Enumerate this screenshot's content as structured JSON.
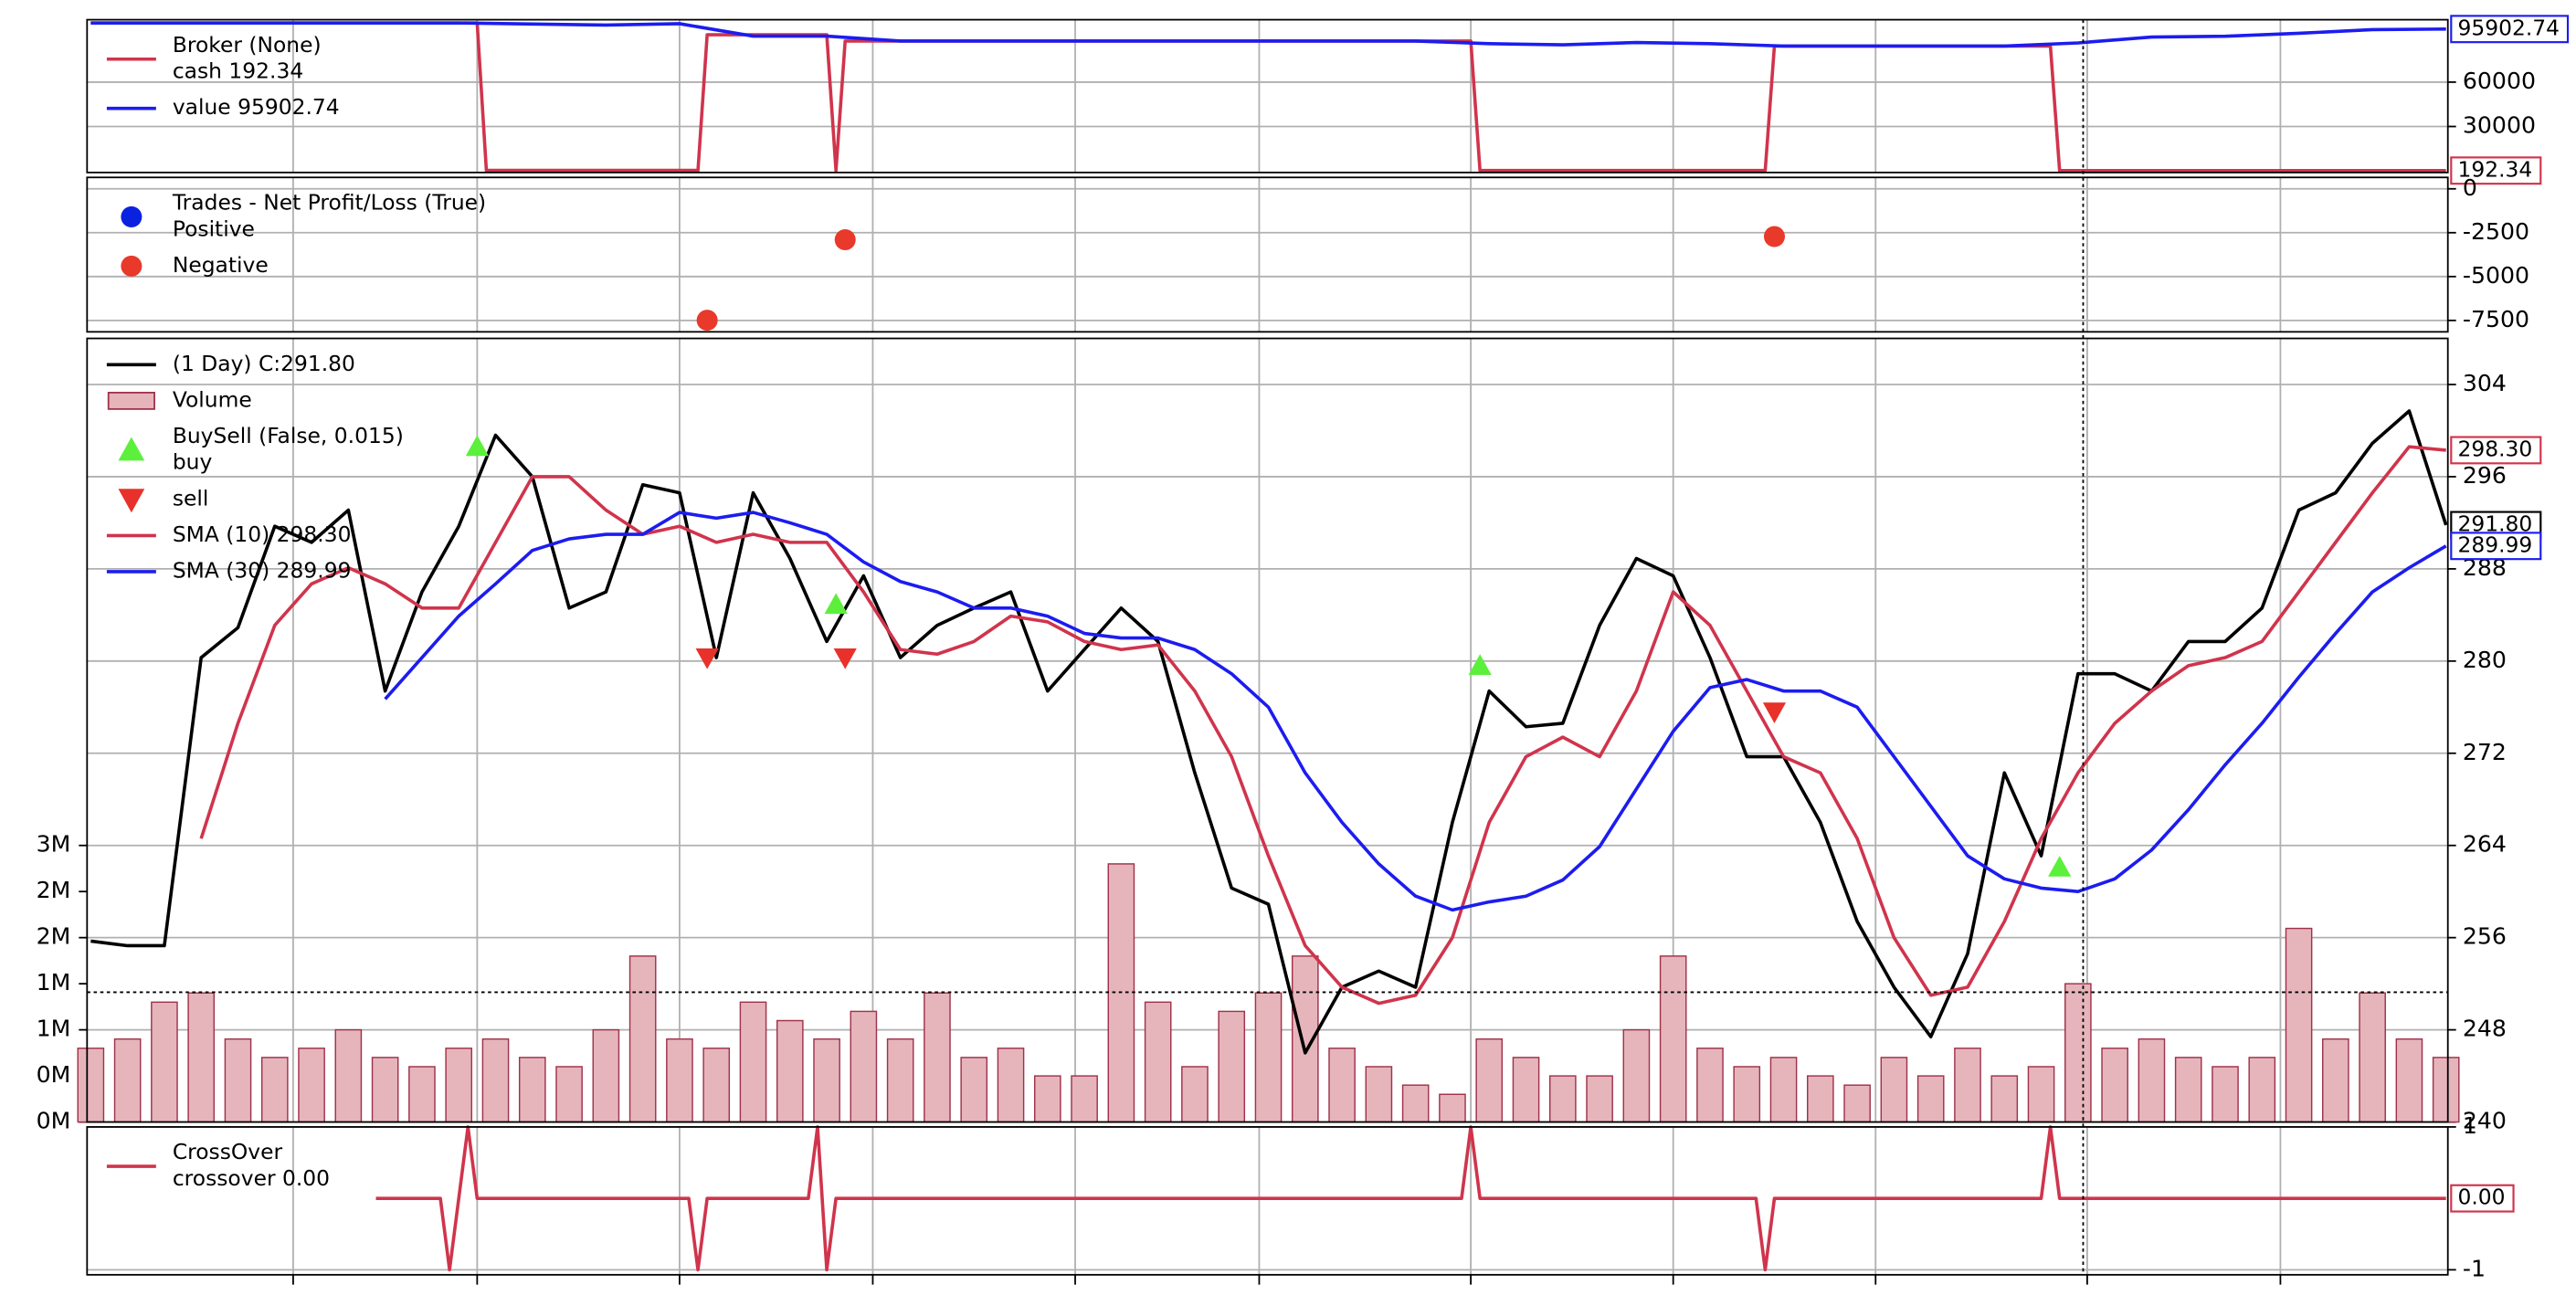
{
  "chart_data": [
    {
      "type": "line",
      "title": "Broker (None)",
      "legend": "upper left",
      "grid": true,
      "xlim": [
        -0.4,
        256.2
      ],
      "xticks": [
        22,
        42,
        64,
        85,
        107,
        127,
        150,
        172,
        194,
        217,
        238
      ],
      "ylim": [
        -1100,
        102200
      ],
      "yticks": [
        30000,
        60000
      ],
      "series": [
        {
          "name": "cash 192.34",
          "color": "#d0344c",
          "tag": "192.34",
          "x": [
            0,
            42,
            43,
            66,
            67,
            80,
            81,
            82,
            150,
            151,
            182,
            183,
            213,
            214,
            256
          ],
          "values": [
            100000,
            100000,
            300,
            300,
            92000,
            92000,
            300,
            87800,
            87800,
            250,
            250,
            84400,
            84400,
            192.34,
            192.34
          ]
        },
        {
          "name": "value 95902.74",
          "color": "#1c1cf0",
          "tag": "95902.74",
          "x": [
            0,
            8,
            16,
            24,
            32,
            40,
            48,
            56,
            64,
            72,
            80,
            88,
            96,
            104,
            112,
            120,
            128,
            136,
            144,
            152,
            160,
            168,
            176,
            184,
            192,
            200,
            208,
            216,
            224,
            232,
            240,
            248,
            256
          ],
          "values": [
            100000,
            100000,
            100000,
            100000,
            100000,
            100000,
            99300,
            98600,
            99500,
            91100,
            91100,
            87800,
            87800,
            87800,
            87800,
            87800,
            87800,
            87800,
            87800,
            86000,
            85200,
            86800,
            86000,
            84400,
            84400,
            84400,
            84400,
            86500,
            90500,
            91000,
            93000,
            95500,
            95902.74
          ]
        }
      ]
    },
    {
      "type": "scatter",
      "title": "Trades - Net Profit/Loss (True)",
      "legend": "upper left",
      "grid": true,
      "xlim": [
        -0.4,
        256.2
      ],
      "xticks": [
        22,
        42,
        64,
        85,
        107,
        127,
        150,
        172,
        194,
        217,
        238
      ],
      "ylim": [
        -8150,
        650
      ],
      "yticks": [
        -7500,
        -5000,
        -2500,
        0
      ],
      "series": [
        {
          "name": "Positive",
          "color": "#0a22e0",
          "x": [],
          "values": []
        },
        {
          "name": "Negative",
          "color": "#e8392b",
          "x": [
            67,
            82,
            183
          ],
          "values": [
            -7490,
            -2900,
            -2720
          ]
        }
      ]
    },
    {
      "type": "line",
      "legend": "upper left",
      "grid": true,
      "xlim": [
        -0.4,
        256.2
      ],
      "xticks": [
        22,
        42,
        64,
        85,
        107,
        127,
        150,
        172,
        194,
        217,
        238
      ],
      "ylim": [
        240,
        308
      ],
      "yticks": [
        240,
        248,
        256,
        264,
        272,
        280,
        288,
        296,
        304
      ],
      "y2lim": [
        0,
        8500000
      ],
      "y2ticks": [
        {
          "value": 0,
          "label": "0M"
        },
        {
          "value": 500000,
          "label": "0M"
        },
        {
          "value": 1000000,
          "label": "1M"
        },
        {
          "value": 1500000,
          "label": "1M"
        },
        {
          "value": 2000000,
          "label": "2M"
        },
        {
          "value": 2500000,
          "label": "2M"
        },
        {
          "value": 3000000,
          "label": "3M"
        }
      ],
      "x": [
        0,
        4,
        8,
        12,
        16,
        20,
        24,
        28,
        32,
        36,
        40,
        44,
        48,
        52,
        56,
        60,
        64,
        68,
        72,
        76,
        80,
        84,
        88,
        92,
        96,
        100,
        104,
        108,
        112,
        116,
        120,
        124,
        128,
        132,
        136,
        140,
        144,
        148,
        152,
        156,
        160,
        164,
        168,
        172,
        176,
        180,
        184,
        188,
        192,
        196,
        200,
        204,
        208,
        212,
        216,
        220,
        224,
        228,
        232,
        236,
        240,
        244,
        248,
        252,
        256
      ],
      "series": [
        {
          "name": "(1 Day) C:291.80",
          "color": "#000000",
          "tag": "291.80",
          "values": [
            255.7,
            255.3,
            255.3,
            280.3,
            282.9,
            291.7,
            290.3,
            293.1,
            277.4,
            286,
            291.7,
            299.6,
            296,
            284.6,
            286,
            295.3,
            294.6,
            280.3,
            294.6,
            288.9,
            281.7,
            287.4,
            280.3,
            283.1,
            284.6,
            286,
            277.4,
            281,
            284.6,
            281.7,
            270.3,
            260.3,
            258.9,
            246,
            251.7,
            253.1,
            251.7,
            266,
            277.4,
            274.3,
            274.6,
            283.1,
            288.9,
            287.4,
            280.3,
            271.7,
            271.7,
            266,
            257.4,
            251.7,
            247.4,
            254.6,
            270.3,
            263.1,
            278.9,
            278.9,
            277.4,
            281.7,
            281.7,
            284.6,
            293.1,
            294.6,
            298.9,
            301.7,
            291.8
          ]
        },
        {
          "name": "Volume",
          "type": "bar",
          "axis": "y2",
          "color": "#e6b5bb",
          "edgecolor": "#a0324a",
          "values": [
            800000,
            900000,
            1300000,
            1400000,
            900000,
            700000,
            800000,
            1000000,
            700000,
            600000,
            800000,
            900000,
            700000,
            600000,
            1000000,
            1800000,
            900000,
            800000,
            1300000,
            1100000,
            900000,
            1200000,
            900000,
            1400000,
            700000,
            800000,
            500000,
            500000,
            2800000,
            1300000,
            600000,
            1200000,
            1400000,
            1800000,
            800000,
            600000,
            400000,
            300000,
            900000,
            700000,
            500000,
            500000,
            1000000,
            1800000,
            800000,
            600000,
            700000,
            500000,
            400000,
            700000,
            500000,
            800000,
            500000,
            600000,
            1500000,
            800000,
            900000,
            700000,
            600000,
            700000,
            2100000,
            900000,
            1400000,
            900000,
            700000
          ]
        },
        {
          "group": "BuySell (False, 0.015)",
          "name": "buy",
          "type": "scatter",
          "marker": "^",
          "color": "#5cf03c",
          "x": [
            42,
            81,
            151,
            214
          ],
          "values": [
            298.6,
            284.9,
            279.6,
            262.1
          ]
        },
        {
          "name": "sell",
          "type": "scatter",
          "marker": "v",
          "color": "#e8312a",
          "x": [
            67,
            82,
            183
          ],
          "values": [
            280.3,
            280.3,
            275.6
          ]
        },
        {
          "name": "SMA (10) 298.30",
          "color": "#d0344c",
          "tag": "298.30",
          "values": [
            null,
            null,
            null,
            264.6,
            274.6,
            283.1,
            286.7,
            288.1,
            286.7,
            284.6,
            284.6,
            290.3,
            296,
            296,
            293.1,
            291,
            291.7,
            290.3,
            291,
            290.3,
            290.3,
            286,
            281,
            280.6,
            281.7,
            283.9,
            283.4,
            281.7,
            281,
            281.4,
            277.4,
            271.7,
            263.1,
            255.3,
            251.7,
            250.3,
            251,
            256,
            266,
            271.7,
            273.4,
            271.7,
            277.4,
            286,
            283.1,
            277.4,
            271.7,
            270.3,
            264.6,
            256,
            251,
            251.7,
            257.4,
            264.6,
            270.3,
            274.6,
            277.4,
            279.6,
            280.3,
            281.7,
            286,
            290.3,
            294.6,
            298.6,
            298.3
          ]
        },
        {
          "name": "SMA (30) 289.99",
          "color": "#1c1cf0",
          "tag": "289.99",
          "values": [
            null,
            null,
            null,
            null,
            null,
            null,
            null,
            null,
            276.7,
            280.3,
            283.9,
            286.7,
            289.6,
            290.6,
            291,
            291,
            292.9,
            292.4,
            292.9,
            292,
            291,
            288.6,
            286.9,
            286,
            284.6,
            284.6,
            283.9,
            282.4,
            282,
            282,
            281,
            278.9,
            276,
            270.3,
            266,
            262.4,
            259.6,
            258.4,
            259.1,
            259.6,
            261,
            263.9,
            268.9,
            273.9,
            277.7,
            278.4,
            277.4,
            277.4,
            276,
            271.7,
            267.4,
            263.1,
            261.1,
            260.3,
            260,
            261.1,
            263.6,
            267.1,
            271,
            274.6,
            278.6,
            282.4,
            286,
            288.1,
            289.99
          ]
        }
      ]
    },
    {
      "type": "line",
      "title": "CrossOver",
      "legend": "upper left",
      "grid": true,
      "xlim": [
        -0.4,
        256.2
      ],
      "xticks": [
        22,
        42,
        64,
        85,
        107,
        127,
        150,
        172,
        194,
        217,
        238
      ],
      "ylim": [
        -1.07,
        1
      ],
      "yticks": [
        -1,
        1
      ],
      "series": [
        {
          "name": "crossover 0.00",
          "color": "#d0344c",
          "tag": "0.00",
          "x": [
            31,
            38,
            39,
            41,
            42,
            65,
            66,
            67,
            78,
            79,
            80,
            81,
            149,
            150,
            151,
            181,
            182,
            183,
            212,
            213,
            214,
            256
          ],
          "values": [
            0,
            0,
            -1,
            1,
            0,
            0,
            -1,
            0,
            0,
            1,
            -1,
            0,
            0,
            1,
            0,
            0,
            -1,
            0,
            0,
            1,
            0,
            0
          ]
        }
      ]
    }
  ]
}
